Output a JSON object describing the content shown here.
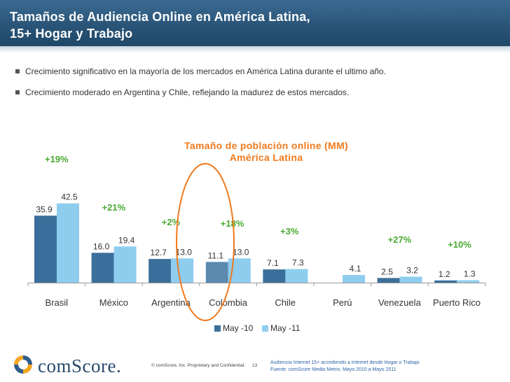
{
  "header": {
    "title_line_1": "Tamaños de Audiencia Online en América Latina,",
    "title_line_2": "15+ Hogar y Trabajo"
  },
  "bullets": [
    "Crecimiento significativo en la mayoría de los mercados en América Latina durante el ultimo año.",
    "Crecimiento moderado en Argentina y Chile, reflejando la madurez de estos mercados."
  ],
  "colors": {
    "series_2010": "#3a6f9b",
    "series_2011": "#8fcdee",
    "colombia_2010": "#5b89b0",
    "highlight": "#f07a1e",
    "growth": "#4aa832"
  },
  "chart_data": {
    "type": "bar",
    "title": "Tamaño de población online (MM) América Latina",
    "title_lines": [
      "Tamaño de población online (MM)",
      "América Latina"
    ],
    "categories": [
      "Brasil",
      "México",
      "Argentina",
      "Colombia",
      "Chile",
      "Perú",
      "Venezuela",
      "Puerto Rico"
    ],
    "series": [
      {
        "name": "May -10",
        "values": [
          35.9,
          16.0,
          12.7,
          11.1,
          7.1,
          null,
          2.5,
          1.2
        ],
        "labels": [
          "35.9",
          "16.0",
          "12.7",
          "11.1",
          "7.1",
          "",
          "2.5",
          "1.2"
        ]
      },
      {
        "name": "May -11",
        "values": [
          42.5,
          19.4,
          13.0,
          13.0,
          7.3,
          4.1,
          3.2,
          1.3
        ],
        "labels": [
          "42.5",
          "19.4",
          "13.0",
          "13.0",
          "7.3",
          "4.1",
          "3.2",
          "1.3"
        ]
      }
    ],
    "growth_labels": [
      "+19%",
      "+21%",
      "+2%",
      "+18%",
      "+3%",
      "",
      "+27%",
      "+10%"
    ],
    "highlighted_category": "Colombia",
    "ylim": [
      0,
      45
    ],
    "xlabel": "",
    "ylabel": "",
    "legend": "bottom-center"
  },
  "footer": {
    "logo_text": "comScore.",
    "copyright": "© comScore, Inc.  Proprietary and Confidential.",
    "page_number": "13",
    "note_1": "Audiencia Internet 15+ accediendo a  Internet desde Hogar o Trabajo",
    "note_2": "Fuente: comScore Media Metrix, Mayo 2010 a Mayo 2011"
  }
}
